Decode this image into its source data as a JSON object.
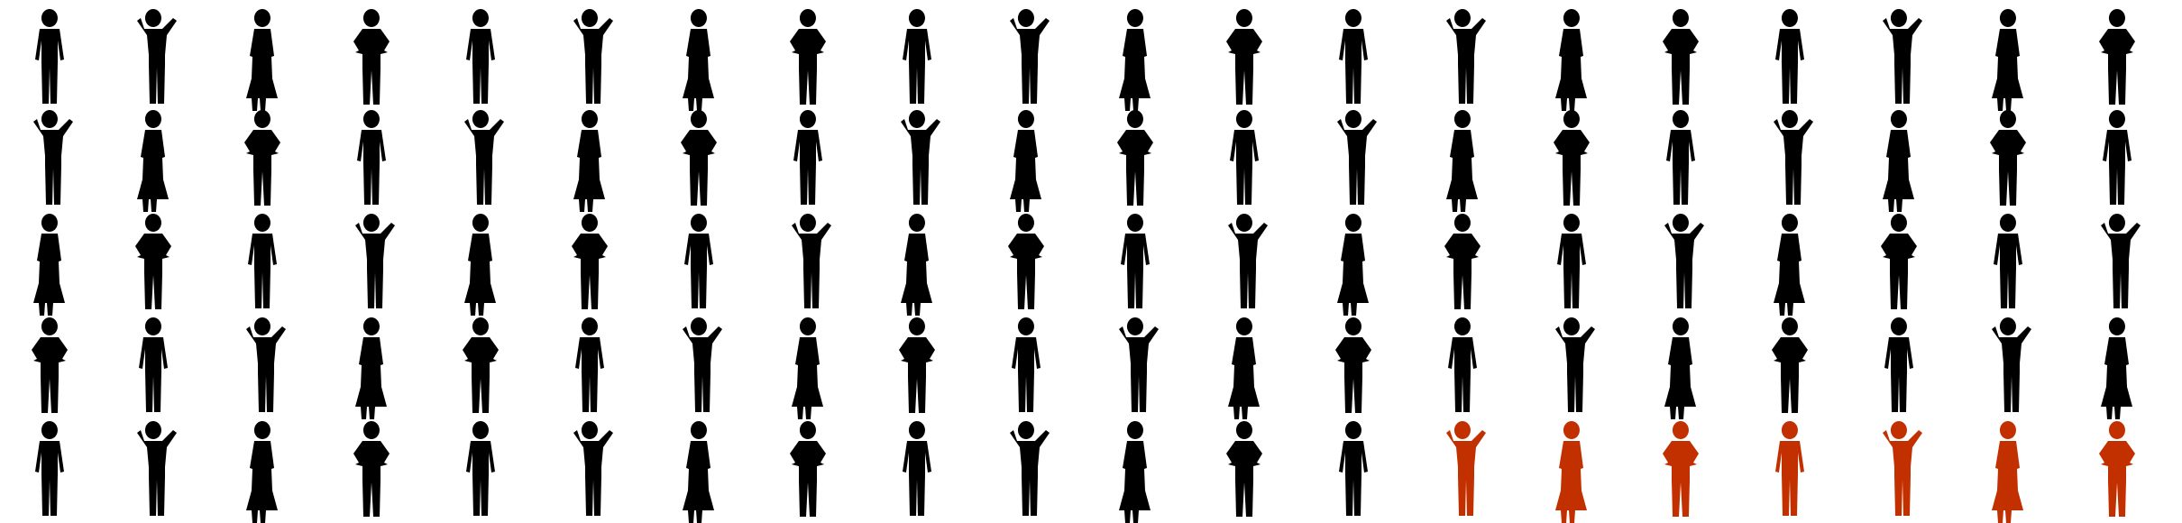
{
  "chart_data": {
    "type": "pictogram",
    "rows": 5,
    "columns": 20,
    "total": 100,
    "highlighted": 7,
    "colors": {
      "default": "#000000",
      "highlight": "#c33000"
    }
  }
}
